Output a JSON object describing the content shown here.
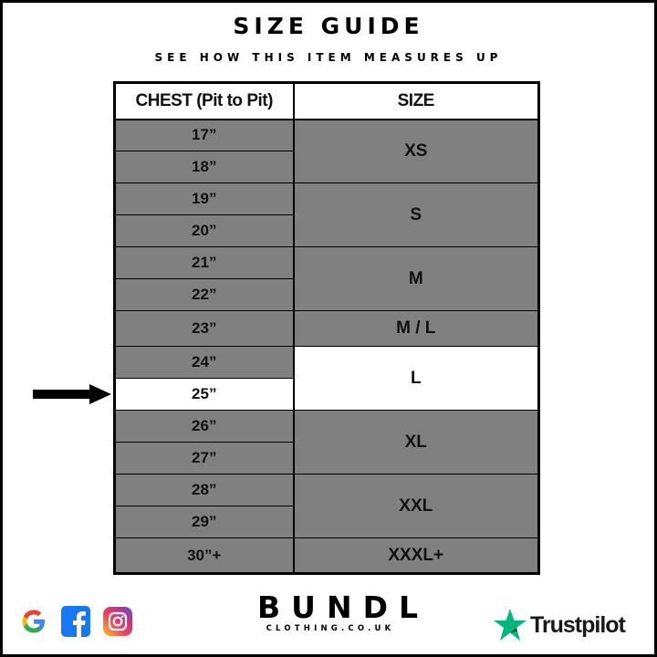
{
  "title": "SIZE GUIDE",
  "subtitle": "SEE HOW THIS ITEM MEASURES UP",
  "table": {
    "headers": [
      "CHEST (Pit to Pit)",
      "SIZE"
    ],
    "groups": [
      {
        "size": "XS",
        "chest": [
          "17”",
          "18”"
        ]
      },
      {
        "size": "S",
        "chest": [
          "19”",
          "20”"
        ]
      },
      {
        "size": "M",
        "chest": [
          "21”",
          "22”"
        ]
      },
      {
        "size": "M / L",
        "chest": [
          "23”"
        ]
      },
      {
        "size": "L",
        "chest": [
          "24”",
          "25”"
        ],
        "highlighted_size": true,
        "highlighted_chest": "25”"
      },
      {
        "size": "XL",
        "chest": [
          "26”",
          "27”"
        ]
      },
      {
        "size": "XXL",
        "chest": [
          "28”",
          "29”"
        ]
      },
      {
        "size": "XXXL+",
        "chest": [
          "30”+"
        ]
      }
    ],
    "colors": {
      "cell": "#808080",
      "highlight": "#ffffff"
    }
  },
  "arrow_icon": "arrow-right-icon",
  "footer": {
    "social_icons": [
      "google-icon",
      "facebook-icon",
      "instagram-icon"
    ],
    "brand": "BUNDL",
    "brand_sub": "CLOTHING.CO.UK",
    "trustpilot": "Trustpilot",
    "trustpilot_color": "#00b67a"
  }
}
